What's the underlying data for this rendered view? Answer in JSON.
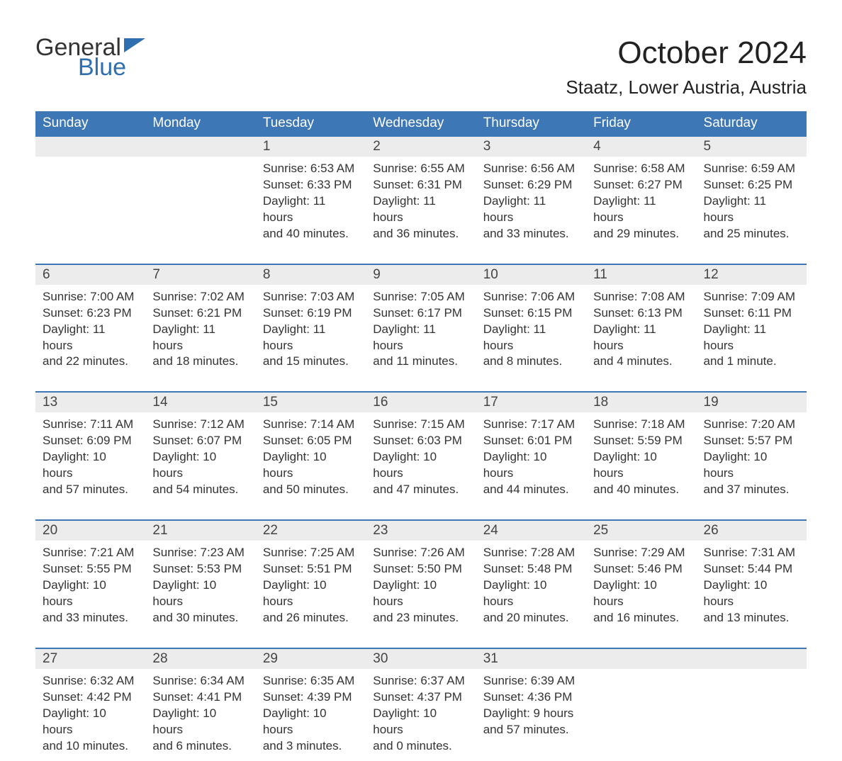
{
  "logo": {
    "general": "General",
    "blue": "Blue",
    "flag_color": "#2f6fb0"
  },
  "title": "October 2024",
  "location": "Staatz, Lower Austria, Austria",
  "colors": {
    "header_bg": "#3d77b6",
    "header_text": "#ffffff",
    "date_strip_bg": "#ececec",
    "week_border": "#3d77b6",
    "body_text": "#333333",
    "logo_blue": "#2f6fb0"
  },
  "day_headers": [
    "Sunday",
    "Monday",
    "Tuesday",
    "Wednesday",
    "Thursday",
    "Friday",
    "Saturday"
  ],
  "weeks": [
    {
      "dates": [
        "",
        "",
        "1",
        "2",
        "3",
        "4",
        "5"
      ],
      "cells": [
        {
          "sunrise": "",
          "sunset": "",
          "daylight1": "",
          "daylight2": ""
        },
        {
          "sunrise": "",
          "sunset": "",
          "daylight1": "",
          "daylight2": ""
        },
        {
          "sunrise": "Sunrise: 6:53 AM",
          "sunset": "Sunset: 6:33 PM",
          "daylight1": "Daylight: 11 hours",
          "daylight2": "and 40 minutes."
        },
        {
          "sunrise": "Sunrise: 6:55 AM",
          "sunset": "Sunset: 6:31 PM",
          "daylight1": "Daylight: 11 hours",
          "daylight2": "and 36 minutes."
        },
        {
          "sunrise": "Sunrise: 6:56 AM",
          "sunset": "Sunset: 6:29 PM",
          "daylight1": "Daylight: 11 hours",
          "daylight2": "and 33 minutes."
        },
        {
          "sunrise": "Sunrise: 6:58 AM",
          "sunset": "Sunset: 6:27 PM",
          "daylight1": "Daylight: 11 hours",
          "daylight2": "and 29 minutes."
        },
        {
          "sunrise": "Sunrise: 6:59 AM",
          "sunset": "Sunset: 6:25 PM",
          "daylight1": "Daylight: 11 hours",
          "daylight2": "and 25 minutes."
        }
      ]
    },
    {
      "dates": [
        "6",
        "7",
        "8",
        "9",
        "10",
        "11",
        "12"
      ],
      "cells": [
        {
          "sunrise": "Sunrise: 7:00 AM",
          "sunset": "Sunset: 6:23 PM",
          "daylight1": "Daylight: 11 hours",
          "daylight2": "and 22 minutes."
        },
        {
          "sunrise": "Sunrise: 7:02 AM",
          "sunset": "Sunset: 6:21 PM",
          "daylight1": "Daylight: 11 hours",
          "daylight2": "and 18 minutes."
        },
        {
          "sunrise": "Sunrise: 7:03 AM",
          "sunset": "Sunset: 6:19 PM",
          "daylight1": "Daylight: 11 hours",
          "daylight2": "and 15 minutes."
        },
        {
          "sunrise": "Sunrise: 7:05 AM",
          "sunset": "Sunset: 6:17 PM",
          "daylight1": "Daylight: 11 hours",
          "daylight2": "and 11 minutes."
        },
        {
          "sunrise": "Sunrise: 7:06 AM",
          "sunset": "Sunset: 6:15 PM",
          "daylight1": "Daylight: 11 hours",
          "daylight2": "and 8 minutes."
        },
        {
          "sunrise": "Sunrise: 7:08 AM",
          "sunset": "Sunset: 6:13 PM",
          "daylight1": "Daylight: 11 hours",
          "daylight2": "and 4 minutes."
        },
        {
          "sunrise": "Sunrise: 7:09 AM",
          "sunset": "Sunset: 6:11 PM",
          "daylight1": "Daylight: 11 hours",
          "daylight2": "and 1 minute."
        }
      ]
    },
    {
      "dates": [
        "13",
        "14",
        "15",
        "16",
        "17",
        "18",
        "19"
      ],
      "cells": [
        {
          "sunrise": "Sunrise: 7:11 AM",
          "sunset": "Sunset: 6:09 PM",
          "daylight1": "Daylight: 10 hours",
          "daylight2": "and 57 minutes."
        },
        {
          "sunrise": "Sunrise: 7:12 AM",
          "sunset": "Sunset: 6:07 PM",
          "daylight1": "Daylight: 10 hours",
          "daylight2": "and 54 minutes."
        },
        {
          "sunrise": "Sunrise: 7:14 AM",
          "sunset": "Sunset: 6:05 PM",
          "daylight1": "Daylight: 10 hours",
          "daylight2": "and 50 minutes."
        },
        {
          "sunrise": "Sunrise: 7:15 AM",
          "sunset": "Sunset: 6:03 PM",
          "daylight1": "Daylight: 10 hours",
          "daylight2": "and 47 minutes."
        },
        {
          "sunrise": "Sunrise: 7:17 AM",
          "sunset": "Sunset: 6:01 PM",
          "daylight1": "Daylight: 10 hours",
          "daylight2": "and 44 minutes."
        },
        {
          "sunrise": "Sunrise: 7:18 AM",
          "sunset": "Sunset: 5:59 PM",
          "daylight1": "Daylight: 10 hours",
          "daylight2": "and 40 minutes."
        },
        {
          "sunrise": "Sunrise: 7:20 AM",
          "sunset": "Sunset: 5:57 PM",
          "daylight1": "Daylight: 10 hours",
          "daylight2": "and 37 minutes."
        }
      ]
    },
    {
      "dates": [
        "20",
        "21",
        "22",
        "23",
        "24",
        "25",
        "26"
      ],
      "cells": [
        {
          "sunrise": "Sunrise: 7:21 AM",
          "sunset": "Sunset: 5:55 PM",
          "daylight1": "Daylight: 10 hours",
          "daylight2": "and 33 minutes."
        },
        {
          "sunrise": "Sunrise: 7:23 AM",
          "sunset": "Sunset: 5:53 PM",
          "daylight1": "Daylight: 10 hours",
          "daylight2": "and 30 minutes."
        },
        {
          "sunrise": "Sunrise: 7:25 AM",
          "sunset": "Sunset: 5:51 PM",
          "daylight1": "Daylight: 10 hours",
          "daylight2": "and 26 minutes."
        },
        {
          "sunrise": "Sunrise: 7:26 AM",
          "sunset": "Sunset: 5:50 PM",
          "daylight1": "Daylight: 10 hours",
          "daylight2": "and 23 minutes."
        },
        {
          "sunrise": "Sunrise: 7:28 AM",
          "sunset": "Sunset: 5:48 PM",
          "daylight1": "Daylight: 10 hours",
          "daylight2": "and 20 minutes."
        },
        {
          "sunrise": "Sunrise: 7:29 AM",
          "sunset": "Sunset: 5:46 PM",
          "daylight1": "Daylight: 10 hours",
          "daylight2": "and 16 minutes."
        },
        {
          "sunrise": "Sunrise: 7:31 AM",
          "sunset": "Sunset: 5:44 PM",
          "daylight1": "Daylight: 10 hours",
          "daylight2": "and 13 minutes."
        }
      ]
    },
    {
      "dates": [
        "27",
        "28",
        "29",
        "30",
        "31",
        "",
        ""
      ],
      "cells": [
        {
          "sunrise": "Sunrise: 6:32 AM",
          "sunset": "Sunset: 4:42 PM",
          "daylight1": "Daylight: 10 hours",
          "daylight2": "and 10 minutes."
        },
        {
          "sunrise": "Sunrise: 6:34 AM",
          "sunset": "Sunset: 4:41 PM",
          "daylight1": "Daylight: 10 hours",
          "daylight2": "and 6 minutes."
        },
        {
          "sunrise": "Sunrise: 6:35 AM",
          "sunset": "Sunset: 4:39 PM",
          "daylight1": "Daylight: 10 hours",
          "daylight2": "and 3 minutes."
        },
        {
          "sunrise": "Sunrise: 6:37 AM",
          "sunset": "Sunset: 4:37 PM",
          "daylight1": "Daylight: 10 hours",
          "daylight2": "and 0 minutes."
        },
        {
          "sunrise": "Sunrise: 6:39 AM",
          "sunset": "Sunset: 4:36 PM",
          "daylight1": "Daylight: 9 hours",
          "daylight2": "and 57 minutes."
        },
        {
          "sunrise": "",
          "sunset": "",
          "daylight1": "",
          "daylight2": ""
        },
        {
          "sunrise": "",
          "sunset": "",
          "daylight1": "",
          "daylight2": ""
        }
      ]
    }
  ]
}
